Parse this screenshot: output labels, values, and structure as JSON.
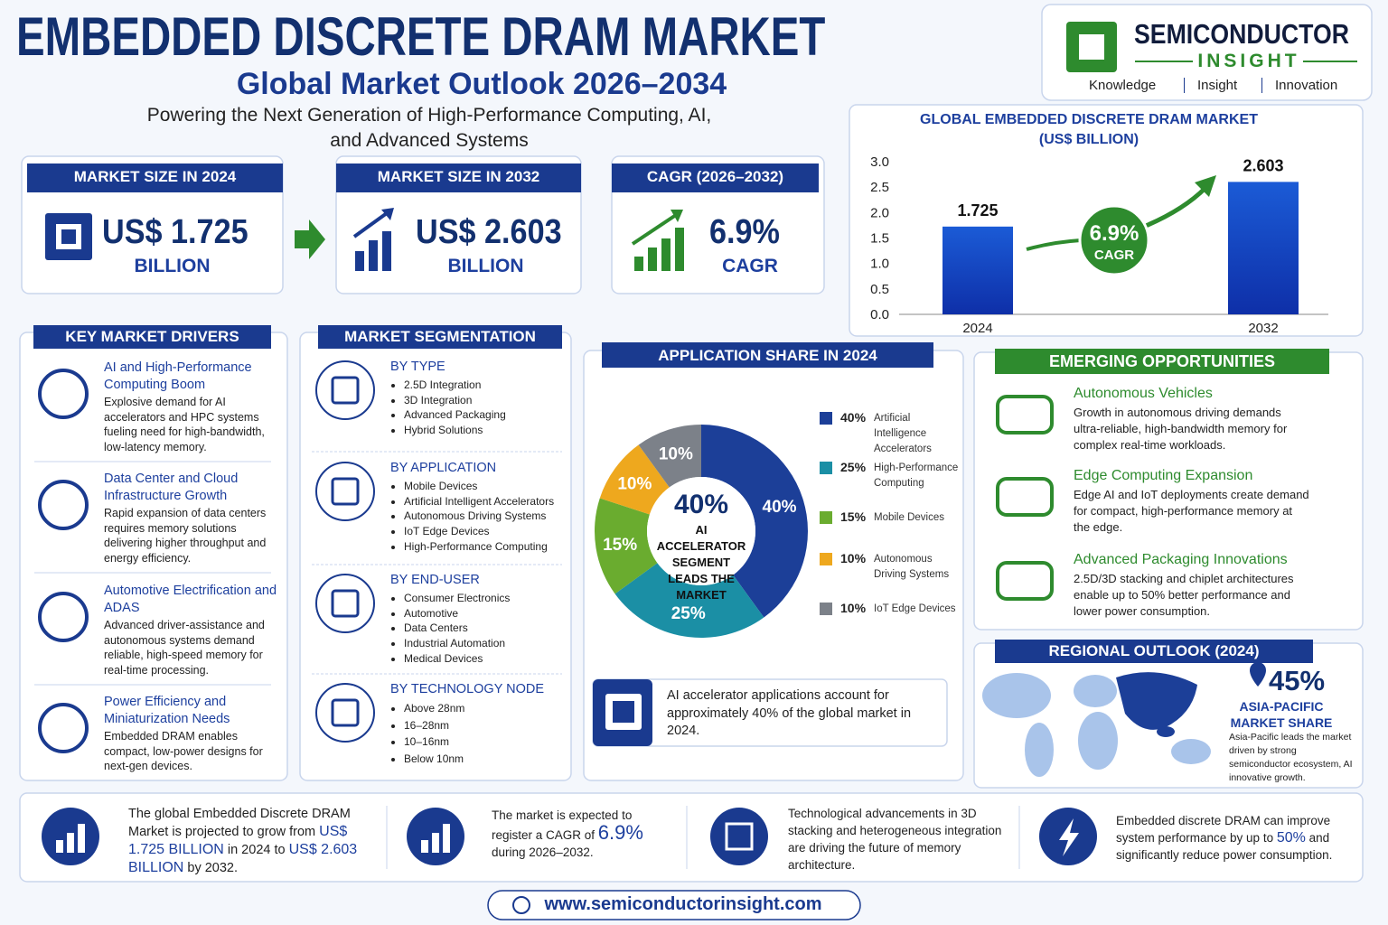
{
  "header": {
    "title": "EMBEDDED DISCRETE DRAM MARKET",
    "subtitle": "Global Market Outlook 2026–2034",
    "tagline": "Powering the Next Generation of High-Performance Computing, AI, and Advanced Systems"
  },
  "logo": {
    "name": "SEMICONDUCTOR",
    "tagline": "INSIGHT",
    "values": [
      "Knowledge",
      "Insight",
      "Innovation"
    ]
  },
  "stats": [
    {
      "label": "MARKET SIZE IN 2024",
      "value": "US$ 1.725",
      "unit": "BILLION"
    },
    {
      "label": "MARKET SIZE IN 2032",
      "value": "US$ 2.603",
      "unit": "BILLION"
    },
    {
      "label": "CAGR (2026–2032)",
      "value": "6.9%",
      "unit": "CAGR"
    }
  ],
  "chart_data": [
    {
      "type": "bar",
      "title": "GLOBAL EMBEDDED DISCRETE DRAM MARKET",
      "subtitle": "(US$ BILLION)",
      "categories": [
        "2024",
        "2032"
      ],
      "values": [
        1.725,
        2.603
      ],
      "color": "#1b5bd6",
      "ylim": [
        0,
        3
      ],
      "yticks": [
        {
          "value": 0,
          "label": "0.0"
        },
        0.5,
        {
          "value": 1,
          "label": "1.0"
        },
        1.5,
        {
          "value": 2,
          "label": "2.0"
        },
        2.5,
        {
          "value": 3,
          "label": "3.0"
        }
      ],
      "grid": false,
      "annotations": [
        "6.9%",
        "CAGR"
      ]
    },
    {
      "type": "pie",
      "title": "APPLICATION SHARE IN 2024",
      "categories": [
        "Artificial Intelligence Accelerators",
        "High-Performance Computing",
        "Mobile Devices",
        "Autonomous Driving Systems",
        "IoT Edge Devices"
      ],
      "values": [
        40,
        25,
        15,
        10,
        10
      ],
      "value_labels": [
        "40%",
        "25%",
        "15%",
        "10%",
        "10%"
      ],
      "colors": [
        "#1c3f98",
        "#1b8fa5",
        "#6aac2f",
        "#eea81e",
        "#7c8189"
      ],
      "center_value": "40%",
      "center_text": "AI ACCELERATOR SEGMENT LEADS THE MARKET",
      "note": "AI accelerator applications account for approximately 40% of the global market in 2024."
    }
  ],
  "drivers": {
    "title": "KEY MARKET DRIVERS",
    "items": [
      {
        "heading": "AI and High-Performance Computing Boom",
        "text": "Explosive demand for AI accelerators and HPC systems fueling need for high-bandwidth, low-latency memory."
      },
      {
        "heading": "Data Center and Cloud Infrastructure Growth",
        "text": "Rapid expansion of data centers requires memory solutions delivering higher throughput and energy efficiency."
      },
      {
        "heading": "Automotive Electrification and ADAS",
        "text": "Advanced driver-assistance and autonomous systems demand reliable, high-speed memory for real-time processing."
      },
      {
        "heading": "Power Efficiency and Miniaturization Needs",
        "text": "Embedded DRAM enables compact, low-power designs for next-gen devices."
      }
    ]
  },
  "segmentation": {
    "title": "MARKET SEGMENTATION",
    "groups": [
      {
        "heading": "BY TYPE",
        "items": [
          "2.5D Integration",
          "3D Integration",
          "Advanced Packaging",
          "Hybrid Solutions"
        ]
      },
      {
        "heading": "BY APPLICATION",
        "items": [
          "Mobile Devices",
          "Artificial Intelligent Accelerators",
          "Autonomous Driving Systems",
          "IoT Edge Devices",
          "High-Performance Computing"
        ]
      },
      {
        "heading": "BY END-USER",
        "items": [
          "Consumer Electronics",
          "Automotive",
          "Data Centers",
          "Industrial Automation",
          "Medical Devices"
        ]
      },
      {
        "heading": "BY TECHNOLOGY NODE",
        "items": [
          "Above 28nm",
          "16–28nm",
          "10–16nm",
          "Below 10nm"
        ]
      }
    ]
  },
  "opportunities": {
    "title": "EMERGING OPPORTUNITIES",
    "items": [
      {
        "heading": "Autonomous Vehicles",
        "text": "Growth in autonomous driving demands ultra-reliable, high-bandwidth memory for complex real-time workloads."
      },
      {
        "heading": "Edge Computing Expansion",
        "text": "Edge AI and IoT deployments create demand for compact, high-performance memory at the edge."
      },
      {
        "heading": "Advanced Packaging Innovations",
        "text": "2.5D/3D stacking and chiplet architectures enable up to 50% better performance and lower power consumption."
      }
    ]
  },
  "regional": {
    "title": "REGIONAL OUTLOOK (2024)",
    "share": "45%",
    "region": "ASIA-PACIFIC MARKET SHARE",
    "text": "Asia-Pacific leads the market driven by strong semiconductor ecosystem, AI innovative growth."
  },
  "facts": [
    [
      {
        "text": "The global Embedded Discrete DRAM Market is projected to grow from "
      },
      {
        "text": "US$ 1.725 BILLION",
        "strong": true
      },
      {
        "text": " in 2024 to "
      },
      {
        "text": "US$ 2.603 BILLION",
        "strong": true
      },
      {
        "text": " by 2032."
      }
    ],
    [
      {
        "text": "The market is expected to register a CAGR of "
      },
      {
        "text": "6.9%",
        "strong": true
      },
      {
        "text": " during 2026–2032."
      }
    ],
    [
      {
        "text": "Technological advancements in 3D stacking and heterogeneous integration are driving the future of memory architecture."
      }
    ],
    [
      {
        "text": "Embedded discrete DRAM can improve system performance by up to "
      },
      {
        "text": "50%",
        "strong": true
      },
      {
        "text": " and significantly reduce power consumption."
      }
    ]
  ],
  "website": "www.semiconductorinsight.com"
}
